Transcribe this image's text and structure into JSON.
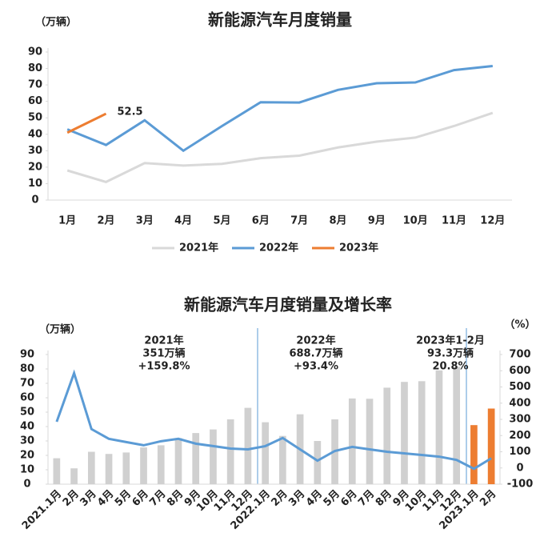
{
  "chart_data": [
    {
      "type": "line",
      "title": "新能源汽车月度销量",
      "y_label": "（万辆）",
      "categories": [
        "1月",
        "2月",
        "3月",
        "4月",
        "5月",
        "6月",
        "7月",
        "8月",
        "9月",
        "10月",
        "11月",
        "12月"
      ],
      "series": [
        {
          "name": "2021年",
          "color": "#d9d9d9",
          "values": [
            18,
            11,
            22.5,
            21,
            22,
            25.5,
            27,
            32,
            35.5,
            38,
            45,
            53
          ]
        },
        {
          "name": "2022年",
          "color": "#5b9bd5",
          "values": [
            43,
            33.5,
            48.5,
            30,
            45,
            59.5,
            59.3,
            67,
            71,
            71.5,
            79,
            81.5
          ]
        },
        {
          "name": "2023年",
          "color": "#ed7d31",
          "values": [
            41,
            52.5,
            null,
            null,
            null,
            null,
            null,
            null,
            null,
            null,
            null,
            null
          ],
          "data_labels": true
        }
      ],
      "ylim": [
        0,
        90
      ],
      "yticks": [
        0,
        10,
        20,
        30,
        40,
        50,
        60,
        70,
        80,
        90
      ],
      "legend": "bottom"
    },
    {
      "type": "bar_line",
      "title": "新能源汽车月度销量及增长率",
      "y_label": "（万辆）",
      "y2_label": "（%）",
      "categories": [
        "2021.1月",
        "2月",
        "3月",
        "4月",
        "5月",
        "6月",
        "7月",
        "8月",
        "9月",
        "10月",
        "11月",
        "12月",
        "2022.1月",
        "2月",
        "3月",
        "4月",
        "5月",
        "6月",
        "7月",
        "8月",
        "9月",
        "10月",
        "11月",
        "12月",
        "2023.1月",
        "2月"
      ],
      "series": [
        {
          "name": "销量",
          "type": "bar",
          "colors": [
            "#d0d0d0",
            "#d0d0d0",
            "#d0d0d0",
            "#d0d0d0",
            "#d0d0d0",
            "#d0d0d0",
            "#d0d0d0",
            "#d0d0d0",
            "#d0d0d0",
            "#d0d0d0",
            "#d0d0d0",
            "#d0d0d0",
            "#d0d0d0",
            "#d0d0d0",
            "#d0d0d0",
            "#d0d0d0",
            "#d0d0d0",
            "#d0d0d0",
            "#d0d0d0",
            "#d0d0d0",
            "#d0d0d0",
            "#d0d0d0",
            "#d0d0d0",
            "#d0d0d0",
            "#ed7d31",
            "#ed7d31"
          ],
          "values": [
            18,
            11,
            22.5,
            21,
            22,
            25.5,
            27,
            32,
            35.5,
            38,
            45,
            53,
            43,
            33.5,
            48.5,
            30,
            45,
            59.5,
            59.3,
            67,
            71,
            71.5,
            79,
            81.5,
            41,
            52.5
          ]
        },
        {
          "name": "增长率",
          "type": "line",
          "axis": "y2",
          "color": "#5b9bd5",
          "values": [
            285,
            585,
            240,
            180,
            160,
            140,
            165,
            180,
            150,
            135,
            120,
            115,
            135,
            185,
            115,
            45,
            105,
            130,
            115,
            100,
            90,
            80,
            70,
            50,
            -5,
            60
          ]
        }
      ],
      "ylim": [
        0,
        90
      ],
      "yticks": [
        0,
        10,
        20,
        30,
        40,
        50,
        60,
        70,
        80,
        90
      ],
      "y2lim": [
        -100,
        700
      ],
      "y2ticks": [
        -100,
        0,
        100,
        200,
        300,
        400,
        500,
        600,
        700
      ],
      "annotations": [
        [
          "2021年",
          "351万辆",
          "+159.8%"
        ],
        [
          "2022年",
          "688.7万辆",
          "+93.4%"
        ],
        [
          "2023年1-2月",
          "93.3万辆",
          "20.8%"
        ]
      ]
    }
  ]
}
